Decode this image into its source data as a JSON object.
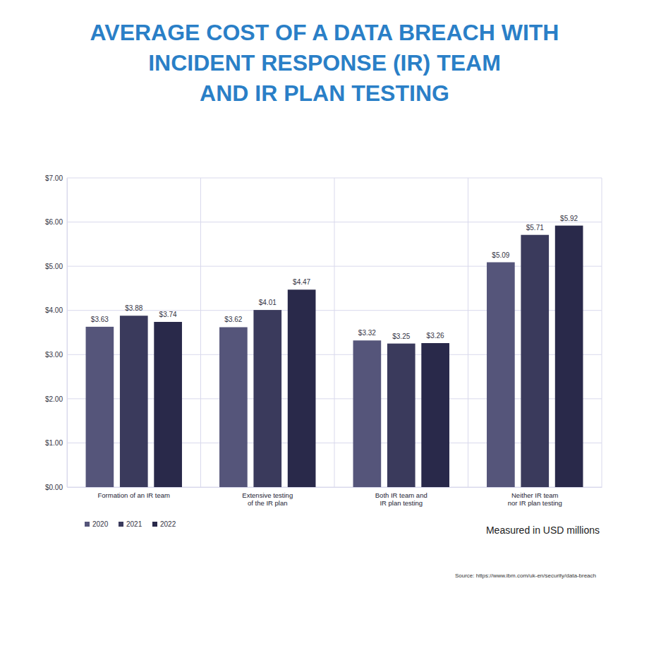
{
  "chart_data": {
    "type": "bar",
    "title": "AVERAGE COST OF A DATA BREACH WITH\nINCIDENT RESPONSE (IR) TEAM\nAND IR PLAN TESTING",
    "categories": [
      "Formation of an IR team",
      "Extensive testing\nof the IR plan",
      "Both IR team and\nIR plan testing",
      "Neither IR team\nnor IR plan testing"
    ],
    "series": [
      {
        "name": "2020",
        "color": "#55557a",
        "values": [
          3.63,
          3.62,
          3.32,
          5.09
        ],
        "value_labels": [
          "$3.63",
          "$3.62",
          "$3.32",
          "$5.09"
        ]
      },
      {
        "name": "2021",
        "color": "#3a3a5c",
        "values": [
          3.88,
          4.01,
          3.25,
          5.71
        ],
        "value_labels": [
          "$3.88",
          "$4.01",
          "$3.25",
          "$5.71"
        ]
      },
      {
        "name": "2022",
        "color": "#29294a",
        "values": [
          3.74,
          4.47,
          3.26,
          5.92
        ],
        "value_labels": [
          "$3.74",
          "$4.47",
          "$3.26",
          "$5.92"
        ]
      }
    ],
    "ylim": [
      0,
      7
    ],
    "yticks": [
      {
        "value": 0,
        "label": "$0.00"
      },
      {
        "value": 1,
        "label": "$1.00"
      },
      {
        "value": 2,
        "label": "$2.00"
      },
      {
        "value": 3,
        "label": "$3.00"
      },
      {
        "value": 4,
        "label": "$4.00"
      },
      {
        "value": 5,
        "label": "$5.00"
      },
      {
        "value": 6,
        "label": "$6.00"
      },
      {
        "value": 7,
        "label": "$7.00"
      }
    ],
    "grid": true,
    "data_labels": true,
    "legend": "bottom-left",
    "annotations": [
      "Measured in USD millions",
      "Source: https://www.ibm.com/uk-en/security/data-breach"
    ]
  }
}
